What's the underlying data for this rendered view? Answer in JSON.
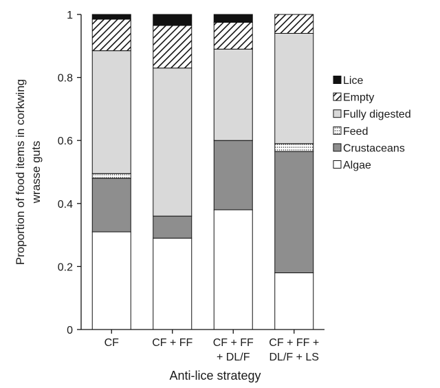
{
  "chart_data": {
    "type": "bar",
    "stacked": true,
    "xlabel": "Anti-lice strategy",
    "ylabel_lines": [
      "Proportion of food items in corkwing",
      "wrasse guts"
    ],
    "ylim": [
      0,
      1
    ],
    "yticks": [
      "0",
      "0.2",
      "0.4",
      "0.6",
      "0.8",
      "1"
    ],
    "categories": [
      [
        "CF"
      ],
      [
        "CF + FF"
      ],
      [
        "CF + FF",
        "+ DL/F"
      ],
      [
        "CF + FF +",
        "DL/F + LS"
      ]
    ],
    "series": [
      {
        "name": "Algae",
        "fill": "white",
        "values": [
          0.31,
          0.29,
          0.38,
          0.18
        ]
      },
      {
        "name": "Crustaceans",
        "fill": "darkgray",
        "values": [
          0.17,
          0.07,
          0.22,
          0.385
        ]
      },
      {
        "name": "Feed",
        "fill": "dotted",
        "values": [
          0.015,
          0.0,
          0.0,
          0.025
        ]
      },
      {
        "name": "Fully digested",
        "fill": "lightgray",
        "values": [
          0.39,
          0.47,
          0.29,
          0.35
        ]
      },
      {
        "name": "Empty",
        "fill": "hatched",
        "values": [
          0.1,
          0.135,
          0.085,
          0.06
        ]
      },
      {
        "name": "Lice",
        "fill": "black",
        "values": [
          0.015,
          0.035,
          0.025,
          0.0
        ]
      }
    ],
    "legend_order": [
      "Lice",
      "Empty",
      "Fully digested",
      "Feed",
      "Crustaceans",
      "Algae"
    ],
    "legend_position": "right",
    "grid": false
  }
}
